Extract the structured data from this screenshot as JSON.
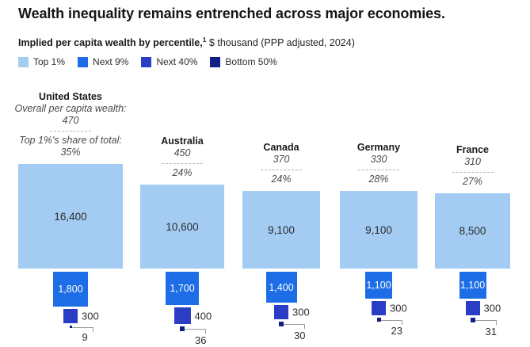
{
  "title": "Wealth inequality remains entrenched across major economies.",
  "subtitle": {
    "bold": "Implied per capita wealth by percentile,",
    "sup": "1",
    "regular": " $ thousand (PPP adjusted, 2024)"
  },
  "chart_data": {
    "type": "proportional-area-squares",
    "title": "Wealth inequality remains entrenched across major economies.",
    "subtitle": "Implied per capita wealth by percentile, $ thousand (PPP adjusted, 2024)",
    "legend_position": "top-left",
    "area_scale": "square area proportional to value, common bottom baseline for Top 1% squares",
    "segments": [
      "Top 1%",
      "Next 9%",
      "Next 40%",
      "Bottom 50%"
    ],
    "segment_colors": [
      "#a4ccf3",
      "#1d6ee6",
      "#2b3dc4",
      "#131f85"
    ],
    "countries": [
      {
        "name": "United States",
        "overall_label": "Overall per capita wealth:",
        "overall_value": "470",
        "share_label": "Top 1%'s share of total:",
        "share_value": "35%",
        "values": [
          16400,
          1800,
          300,
          9
        ],
        "value_labels": [
          "16,400",
          "1,800",
          "300",
          "9"
        ]
      },
      {
        "name": "Australia",
        "overall_label": "",
        "overall_value": "450",
        "share_label": "",
        "share_value": "24%",
        "values": [
          10600,
          1700,
          400,
          36
        ],
        "value_labels": [
          "10,600",
          "1,700",
          "400",
          "36"
        ]
      },
      {
        "name": "Canada",
        "overall_label": "",
        "overall_value": "370",
        "share_label": "",
        "share_value": "24%",
        "values": [
          9100,
          1400,
          300,
          30
        ],
        "value_labels": [
          "9,100",
          "1,400",
          "300",
          "30"
        ]
      },
      {
        "name": "Germany",
        "overall_label": "",
        "overall_value": "330",
        "share_label": "",
        "share_value": "28%",
        "values": [
          9100,
          1100,
          300,
          23
        ],
        "value_labels": [
          "9,100",
          "1,100",
          "300",
          "23"
        ]
      },
      {
        "name": "France",
        "overall_label": "",
        "overall_value": "310",
        "share_label": "",
        "share_value": "27%",
        "values": [
          8500,
          1100,
          300,
          31
        ],
        "value_labels": [
          "8,500",
          "1,100",
          "300",
          "31"
        ]
      }
    ]
  }
}
